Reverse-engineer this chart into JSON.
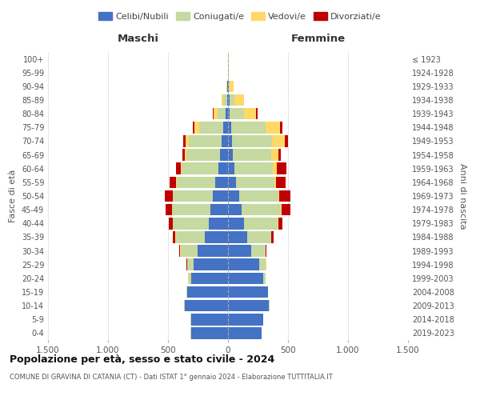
{
  "age_groups": [
    "0-4",
    "5-9",
    "10-14",
    "15-19",
    "20-24",
    "25-29",
    "30-34",
    "35-39",
    "40-44",
    "45-49",
    "50-54",
    "55-59",
    "60-64",
    "65-69",
    "70-74",
    "75-79",
    "80-84",
    "85-89",
    "90-94",
    "95-99",
    "100+"
  ],
  "birth_years": [
    "2019-2023",
    "2014-2018",
    "2009-2013",
    "2004-2008",
    "1999-2003",
    "1994-1998",
    "1989-1993",
    "1984-1988",
    "1979-1983",
    "1974-1978",
    "1969-1973",
    "1964-1968",
    "1959-1963",
    "1954-1958",
    "1949-1953",
    "1944-1948",
    "1939-1943",
    "1934-1938",
    "1929-1933",
    "1924-1928",
    "≤ 1923"
  ],
  "maschi": {
    "celibi": [
      310,
      310,
      360,
      340,
      310,
      290,
      255,
      195,
      160,
      145,
      130,
      110,
      80,
      65,
      55,
      40,
      20,
      10,
      5,
      2,
      2
    ],
    "coniugati": [
      2,
      2,
      5,
      5,
      20,
      50,
      140,
      240,
      300,
      320,
      330,
      320,
      310,
      280,
      270,
      200,
      70,
      30,
      5,
      0,
      0
    ],
    "vedovi": [
      0,
      0,
      0,
      0,
      2,
      2,
      2,
      2,
      2,
      2,
      2,
      5,
      5,
      15,
      30,
      40,
      30,
      15,
      5,
      0,
      0
    ],
    "divorziati": [
      0,
      0,
      0,
      0,
      2,
      5,
      10,
      20,
      30,
      55,
      65,
      55,
      40,
      20,
      20,
      15,
      5,
      0,
      0,
      0,
      0
    ]
  },
  "femmine": {
    "celibi": [
      280,
      290,
      340,
      330,
      290,
      260,
      190,
      160,
      135,
      110,
      90,
      65,
      55,
      40,
      35,
      25,
      15,
      10,
      5,
      2,
      2
    ],
    "coniugati": [
      2,
      2,
      5,
      5,
      20,
      55,
      120,
      200,
      280,
      330,
      330,
      320,
      320,
      320,
      330,
      290,
      120,
      45,
      10,
      0,
      0
    ],
    "vedovi": [
      0,
      0,
      0,
      0,
      2,
      2,
      3,
      3,
      5,
      5,
      8,
      15,
      30,
      60,
      110,
      120,
      100,
      80,
      30,
      2,
      2
    ],
    "divorziati": [
      0,
      0,
      0,
      0,
      2,
      5,
      10,
      20,
      35,
      75,
      90,
      80,
      80,
      20,
      25,
      20,
      10,
      0,
      0,
      0,
      0
    ]
  },
  "colors": {
    "celibi": "#4472C4",
    "coniugati": "#C5D9A0",
    "vedovi": "#FFD966",
    "divorziati": "#C00000"
  },
  "xlim": 1500,
  "title": "Popolazione per età, sesso e stato civile - 2024",
  "subtitle": "COMUNE DI GRAVINA DI CATANIA (CT) - Dati ISTAT 1° gennaio 2024 - Elaborazione TUTTITALIA.IT",
  "xlabel_maschi": "Maschi",
  "xlabel_femmine": "Femmine",
  "ylabel_left": "Fasce di età",
  "ylabel_right": "Anni di nascita",
  "xticks": [
    -1500,
    -1000,
    -500,
    0,
    500,
    1000,
    1500
  ],
  "xtick_labels": [
    "1.500",
    "1.000",
    "500",
    "0",
    "500",
    "1.000",
    "1.500"
  ],
  "background_color": "#ffffff",
  "grid_color": "#cccccc"
}
